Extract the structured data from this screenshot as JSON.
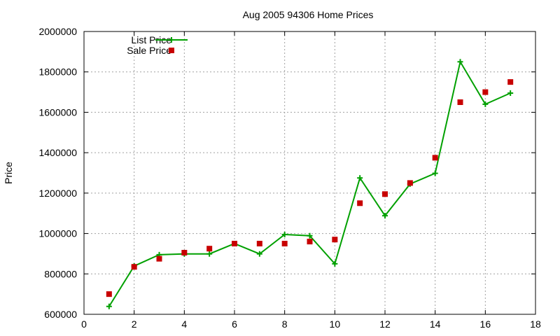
{
  "chart_data": {
    "type": "line",
    "title": "Aug 2005 94306 Home Prices",
    "xlabel": "",
    "ylabel": "Price",
    "xlim": [
      0,
      18
    ],
    "ylim": [
      600000,
      2000000
    ],
    "x_ticks": [
      0,
      2,
      4,
      6,
      8,
      10,
      12,
      14,
      16,
      18
    ],
    "y_ticks": [
      600000,
      800000,
      1000000,
      1200000,
      1400000,
      1600000,
      1800000,
      2000000
    ],
    "grid": true,
    "legend_position": "top-left",
    "series": [
      {
        "name": "List Price",
        "style": "line-with-plus-markers",
        "color": "#00a000",
        "x": [
          1,
          2,
          3,
          4,
          5,
          6,
          7,
          8,
          9,
          10,
          11,
          12,
          13,
          14,
          15,
          16,
          17
        ],
        "values": [
          639000,
          839000,
          895000,
          899000,
          899000,
          950000,
          899000,
          995000,
          989000,
          850000,
          1275000,
          1088000,
          1245000,
          1298000,
          1850000,
          1640000,
          1695000
        ]
      },
      {
        "name": "Sale Price",
        "style": "square-markers",
        "color": "#c80000",
        "x": [
          1,
          2,
          3,
          4,
          5,
          6,
          7,
          8,
          9,
          10,
          11,
          12,
          13,
          14,
          15,
          16,
          17
        ],
        "values": [
          700000,
          835000,
          875000,
          905000,
          925000,
          950000,
          950000,
          950000,
          960000,
          970000,
          1150000,
          1195000,
          1250000,
          1375000,
          1650000,
          1700000,
          1750000
        ]
      }
    ]
  }
}
